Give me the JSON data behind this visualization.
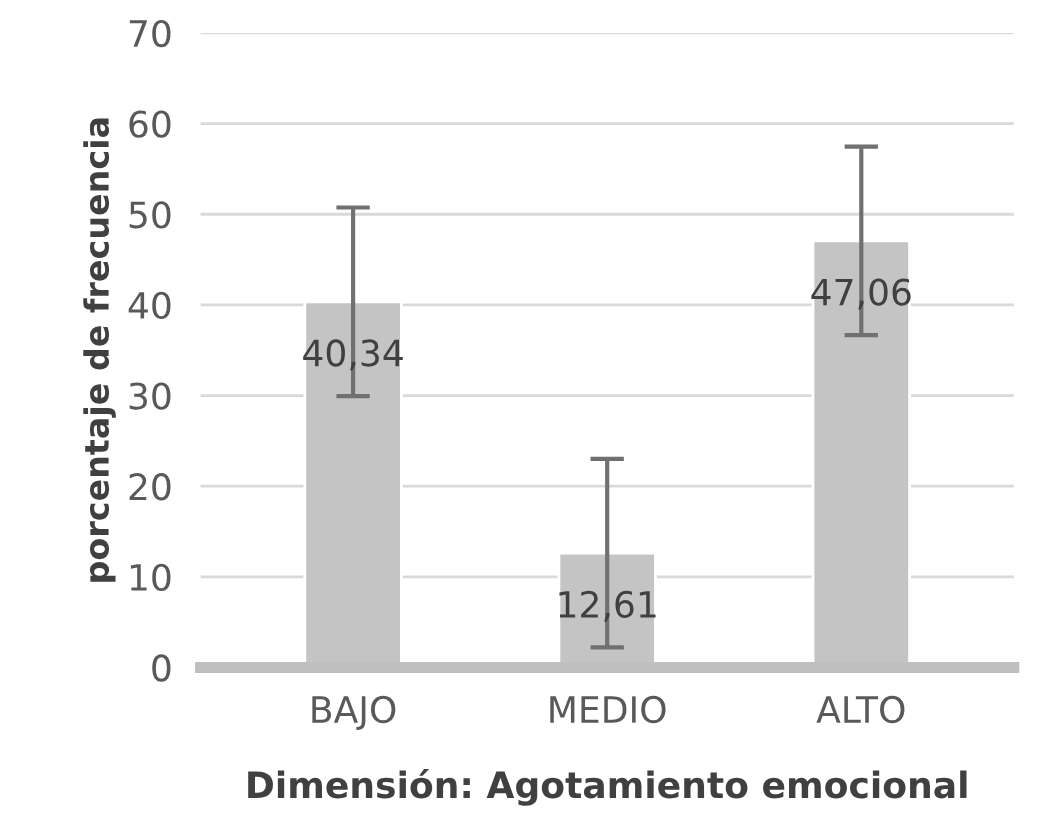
{
  "chart_data": {
    "type": "bar",
    "xlabel": "Dimensión: Agotamiento emocional",
    "ylabel": "porcentaje de frecuencia",
    "categories": [
      "BAJO",
      "MEDIO",
      "ALTO"
    ],
    "values": [
      40.34,
      12.61,
      47.06
    ],
    "value_labels": [
      "40,34",
      "12,61",
      "47,06"
    ],
    "errors": [
      10.4,
      10.4,
      10.4
    ],
    "color": "#c4c4c4",
    "ylim": [
      0,
      70
    ],
    "yticks": [
      0,
      10,
      20,
      30,
      40,
      50,
      60,
      70
    ],
    "grid": "y"
  }
}
